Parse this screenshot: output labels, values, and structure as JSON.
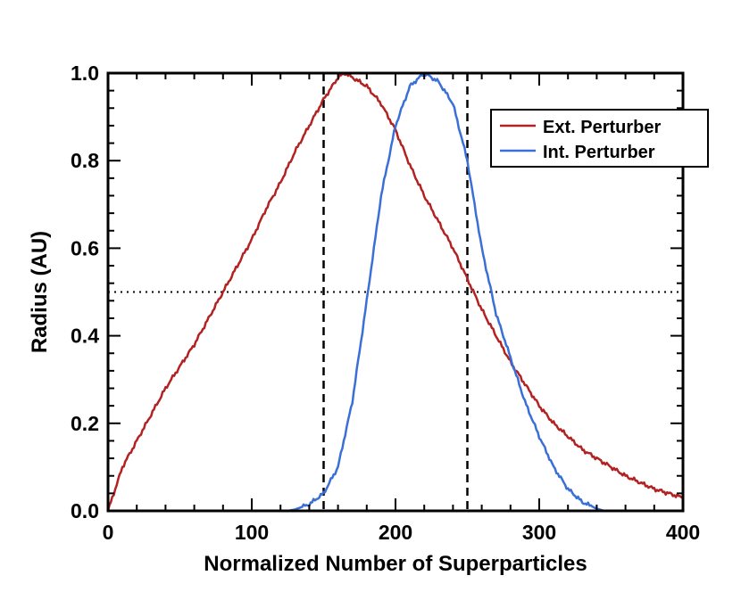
{
  "chart_data": {
    "type": "line",
    "title": "",
    "xlabel": "Normalized Number of Superparticles",
    "ylabel": "Radius (AU)",
    "xlim": [
      0,
      400
    ],
    "ylim": [
      0,
      1.0
    ],
    "xticks": [
      0,
      100,
      200,
      300,
      400
    ],
    "xtick_labels": [
      "0",
      "100",
      "200",
      "300",
      "400"
    ],
    "yticks": [
      0,
      0.2,
      0.4,
      0.6,
      0.8,
      1.0
    ],
    "ytick_labels": [
      "0.0",
      "0.2",
      "0.4",
      "0.6",
      "0.8",
      "1.0"
    ],
    "grid": false,
    "legend_position": "top-right",
    "series": [
      {
        "name": "Ext. Perturber",
        "color": "#b22222",
        "x": [
          0,
          5,
          10,
          20,
          30,
          40,
          50,
          60,
          70,
          80,
          90,
          100,
          110,
          120,
          130,
          140,
          150,
          160,
          165,
          170,
          180,
          190,
          200,
          210,
          220,
          230,
          240,
          250,
          260,
          270,
          280,
          290,
          300,
          310,
          320,
          330,
          340,
          350,
          360,
          370,
          380,
          390,
          400
        ],
        "y": [
          0.0,
          0.05,
          0.1,
          0.16,
          0.22,
          0.28,
          0.33,
          0.38,
          0.44,
          0.5,
          0.56,
          0.62,
          0.69,
          0.75,
          0.82,
          0.88,
          0.94,
          0.99,
          1.0,
          0.99,
          0.97,
          0.93,
          0.87,
          0.79,
          0.72,
          0.66,
          0.6,
          0.53,
          0.46,
          0.4,
          0.34,
          0.29,
          0.24,
          0.2,
          0.17,
          0.14,
          0.12,
          0.1,
          0.08,
          0.065,
          0.05,
          0.04,
          0.03
        ]
      },
      {
        "name": "Int. Perturber",
        "color": "#3a6fd8",
        "x": [
          125,
          130,
          140,
          150,
          160,
          170,
          180,
          190,
          200,
          210,
          215,
          220,
          225,
          230,
          240,
          250,
          260,
          270,
          280,
          290,
          300,
          310,
          320,
          330,
          340,
          345
        ],
        "y": [
          0.0,
          0.003,
          0.015,
          0.04,
          0.1,
          0.25,
          0.48,
          0.72,
          0.88,
          0.97,
          0.985,
          1.0,
          0.99,
          0.98,
          0.93,
          0.8,
          0.6,
          0.45,
          0.35,
          0.25,
          0.17,
          0.1,
          0.05,
          0.02,
          0.005,
          0.0
        ]
      }
    ],
    "annotations": [
      {
        "type": "vertical-dashed-line",
        "x": 150
      },
      {
        "type": "vertical-dashed-line",
        "x": 250
      },
      {
        "type": "horizontal-dotted-line",
        "y": 0.5
      }
    ]
  }
}
